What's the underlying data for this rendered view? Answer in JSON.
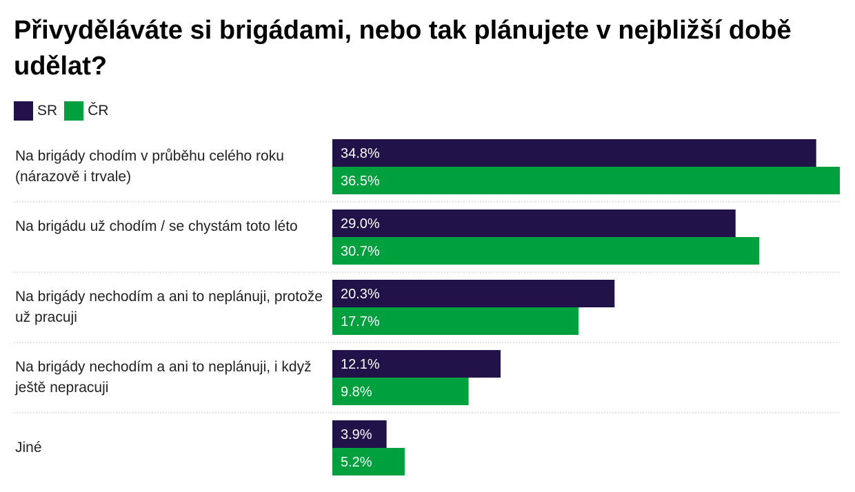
{
  "chart_data": {
    "type": "bar",
    "orientation": "horizontal",
    "title": "Přivyděláváte si brigádami, nebo tak plánujete v nejbližší době udělat?",
    "categories": [
      "Na brigády chodím v průběhu celého roku (nárazově i trvale)",
      "Na brigádu už chodím / se chystám toto léto",
      "Na brigády nechodím a ani to neplánuji, protože už pracuji",
      "Na brigády nechodím a ani to neplánuji, i když ještě nepracuji",
      "Jiné"
    ],
    "series": [
      {
        "name": "SR",
        "color": "#22124a",
        "values": [
          34.8,
          29.0,
          20.3,
          12.1,
          3.9
        ],
        "labels": [
          "34.8%",
          "29.0%",
          "20.3%",
          "12.1%",
          "3.9%"
        ]
      },
      {
        "name": "ČR",
        "color": "#00a03e",
        "values": [
          36.5,
          30.7,
          17.7,
          9.8,
          5.2
        ],
        "labels": [
          "36.5%",
          "30.7%",
          "17.7%",
          "9.8%",
          "5.2%"
        ]
      }
    ],
    "xlim": [
      0,
      36.5
    ],
    "grid": false,
    "legend_position": "top-left"
  }
}
